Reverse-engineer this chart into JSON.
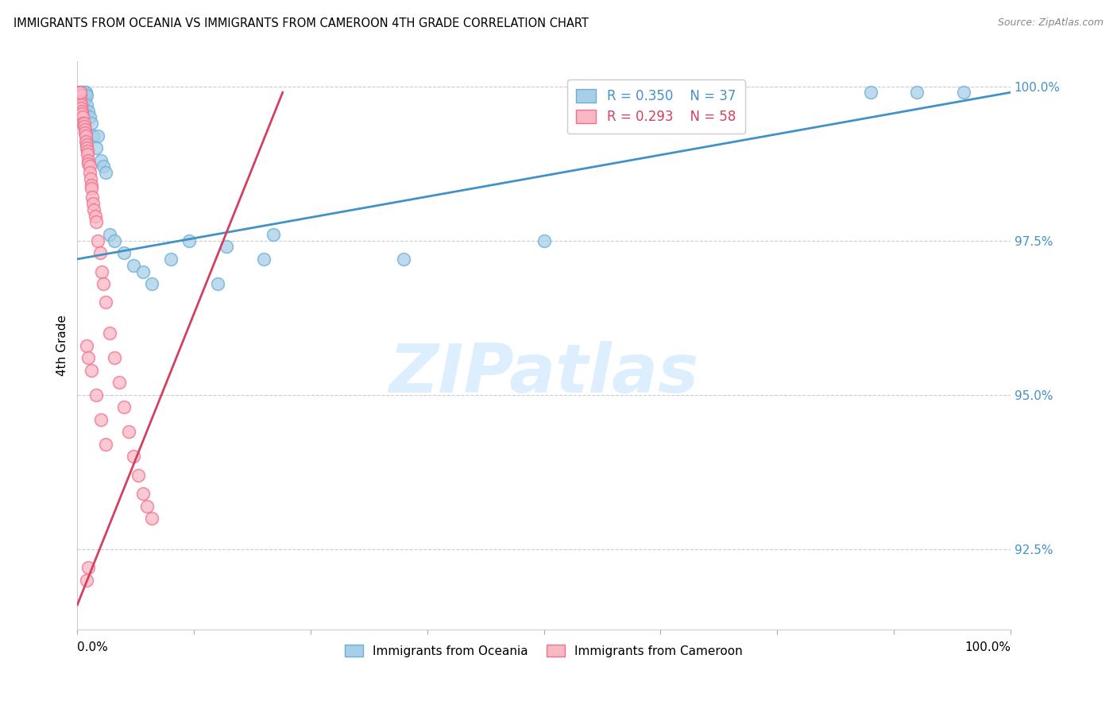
{
  "title": "IMMIGRANTS FROM OCEANIA VS IMMIGRANTS FROM CAMEROON 4TH GRADE CORRELATION CHART",
  "source": "Source: ZipAtlas.com",
  "ylabel": "4th Grade",
  "ytick_labels": [
    "92.5%",
    "95.0%",
    "97.5%",
    "100.0%"
  ],
  "ytick_values": [
    0.925,
    0.95,
    0.975,
    1.0
  ],
  "legend_blue_r": "R = 0.350",
  "legend_blue_n": "N = 37",
  "legend_pink_r": "R = 0.293",
  "legend_pink_n": "N = 58",
  "blue_color": "#a8cfe8",
  "blue_edge": "#6baed6",
  "pink_color": "#f9b8c4",
  "pink_edge": "#f07090",
  "trend_blue": "#4292c6",
  "trend_pink": "#d44060",
  "watermark_text": "ZIPatlas",
  "watermark_color": "#ddeeff",
  "xlim": [
    0.0,
    1.0
  ],
  "ylim": [
    0.912,
    1.004
  ],
  "blue_x": [
    0.003,
    0.005,
    0.005,
    0.006,
    0.007,
    0.008,
    0.008,
    0.009,
    0.01,
    0.01,
    0.012,
    0.013,
    0.015,
    0.017,
    0.02,
    0.022,
    0.025,
    0.028,
    0.03,
    0.035,
    0.04,
    0.05,
    0.06,
    0.07,
    0.08,
    0.1,
    0.12,
    0.15,
    0.16,
    0.2,
    0.35,
    0.5,
    0.66,
    0.85,
    0.9,
    0.95,
    0.21
  ],
  "blue_y": [
    0.999,
    0.9985,
    0.999,
    0.9975,
    0.996,
    0.998,
    0.999,
    0.999,
    0.9985,
    0.997,
    0.996,
    0.995,
    0.994,
    0.992,
    0.99,
    0.992,
    0.988,
    0.987,
    0.986,
    0.976,
    0.975,
    0.973,
    0.971,
    0.97,
    0.968,
    0.972,
    0.975,
    0.968,
    0.974,
    0.972,
    0.972,
    0.975,
    0.999,
    0.999,
    0.999,
    0.999,
    0.976
  ],
  "pink_x": [
    0.001,
    0.001,
    0.002,
    0.002,
    0.003,
    0.003,
    0.003,
    0.004,
    0.004,
    0.005,
    0.005,
    0.006,
    0.006,
    0.007,
    0.007,
    0.008,
    0.008,
    0.009,
    0.009,
    0.01,
    0.01,
    0.011,
    0.011,
    0.012,
    0.012,
    0.013,
    0.013,
    0.014,
    0.015,
    0.015,
    0.016,
    0.017,
    0.018,
    0.019,
    0.02,
    0.022,
    0.024,
    0.026,
    0.028,
    0.03,
    0.035,
    0.04,
    0.045,
    0.05,
    0.055,
    0.06,
    0.065,
    0.07,
    0.075,
    0.08,
    0.01,
    0.012,
    0.015,
    0.02,
    0.025,
    0.03,
    0.01,
    0.012
  ],
  "pink_y": [
    0.999,
    0.9985,
    0.9975,
    0.998,
    0.9985,
    0.9975,
    0.999,
    0.997,
    0.9965,
    0.996,
    0.9955,
    0.995,
    0.994,
    0.994,
    0.9935,
    0.993,
    0.9925,
    0.992,
    0.991,
    0.9905,
    0.99,
    0.9895,
    0.989,
    0.988,
    0.9875,
    0.987,
    0.986,
    0.985,
    0.984,
    0.9835,
    0.982,
    0.981,
    0.98,
    0.979,
    0.978,
    0.975,
    0.973,
    0.97,
    0.968,
    0.965,
    0.96,
    0.956,
    0.952,
    0.948,
    0.944,
    0.94,
    0.937,
    0.934,
    0.932,
    0.93,
    0.958,
    0.956,
    0.954,
    0.95,
    0.946,
    0.942,
    0.92,
    0.922
  ],
  "blue_trend_x": [
    0.0,
    1.0
  ],
  "blue_trend_y": [
    0.972,
    0.999
  ],
  "pink_trend_x": [
    0.0,
    0.22
  ],
  "pink_trend_y": [
    0.916,
    0.999
  ]
}
